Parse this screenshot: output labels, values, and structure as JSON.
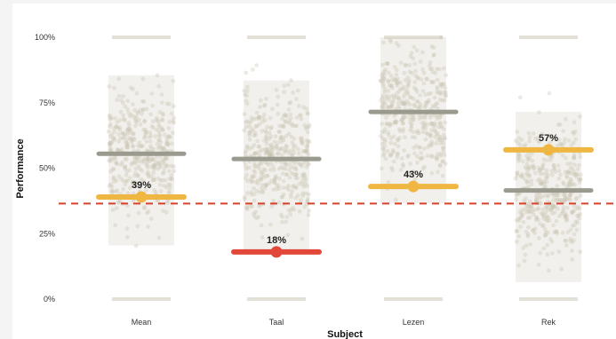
{
  "chart_data": {
    "type": "scatter",
    "title": "",
    "xlabel": "Subject",
    "ylabel": "Performance",
    "ylim": [
      0,
      100
    ],
    "yticks": [
      "0%",
      "25%",
      "50%",
      "75%",
      "100%"
    ],
    "categories": [
      "Mean",
      "Taal",
      "Lezen",
      "Rek"
    ],
    "reference_line": {
      "value": 36.5,
      "style": "dashed",
      "color": "#d9412b"
    },
    "distribution_color": "#c8c2b2",
    "average_bar_color": "#9b9a8f",
    "series": [
      {
        "category": "Mean",
        "average": 55.5,
        "highlight": 39,
        "label": "39%",
        "highlight_color": "#efb642"
      },
      {
        "category": "Taal",
        "average": 53.5,
        "highlight": 18,
        "label": "18%",
        "highlight_color": "#e2483a"
      },
      {
        "category": "Lezen",
        "average": 71.5,
        "highlight": 43,
        "label": "43%",
        "highlight_color": "#efb642"
      },
      {
        "category": "Rek",
        "average": 41.5,
        "highlight": 57,
        "label": "57%",
        "highlight_color": "#efb642"
      }
    ]
  }
}
